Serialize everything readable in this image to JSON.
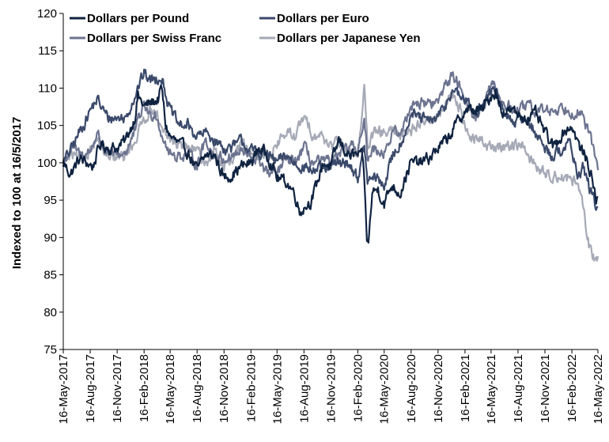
{
  "chart_data": {
    "type": "line",
    "ylabel": "Indexed to 100 at 16/5/2017",
    "ylim": [
      75,
      120
    ],
    "yticks": [
      75,
      80,
      85,
      90,
      95,
      100,
      105,
      110,
      115,
      120
    ],
    "x_start": "16-May-2017",
    "x_end": "16-May-2022",
    "x_ticks": [
      "16-May-2017",
      "16-Aug-2017",
      "16-Nov-2017",
      "16-Feb-2018",
      "16-May-2018",
      "16-Aug-2018",
      "16-Nov-2018",
      "16-Feb-2019",
      "16-May-2019",
      "16-Aug-2019",
      "16-Nov-2019",
      "16-Feb-2020",
      "16-May-2020",
      "16-Aug-2020",
      "16-Nov-2020",
      "16-Feb-2021",
      "16-May-2021",
      "16-Aug-2021",
      "16-Nov-2021",
      "16-Feb-2022",
      "16-May-2022"
    ],
    "legend": "top",
    "grid": false,
    "series": [
      {
        "name": "Dollars per Pound",
        "color": "#0f2340",
        "points": [
          [
            "2017-05-16",
            100
          ],
          [
            "2017-06-10",
            98.5
          ],
          [
            "2017-07-10",
            100.5
          ],
          [
            "2017-08-05",
            100
          ],
          [
            "2017-08-25",
            99.5
          ],
          [
            "2017-09-20",
            102.5
          ],
          [
            "2017-10-20",
            102
          ],
          [
            "2017-11-16",
            102
          ],
          [
            "2017-12-15",
            103
          ],
          [
            "2018-01-15",
            106
          ],
          [
            "2018-01-26",
            109
          ],
          [
            "2018-02-16",
            107.5
          ],
          [
            "2018-03-10",
            108
          ],
          [
            "2018-04-05",
            108.5
          ],
          [
            "2018-04-17",
            110
          ],
          [
            "2018-05-01",
            105
          ],
          [
            "2018-05-16",
            103.5
          ],
          [
            "2018-06-15",
            102.5
          ],
          [
            "2018-07-15",
            101.5
          ],
          [
            "2018-08-16",
            99
          ],
          [
            "2018-09-15",
            101
          ],
          [
            "2018-10-15",
            101
          ],
          [
            "2018-11-16",
            98
          ],
          [
            "2018-12-15",
            98.5
          ],
          [
            "2019-01-15",
            99.5
          ],
          [
            "2019-02-16",
            100
          ],
          [
            "2019-03-15",
            102
          ],
          [
            "2019-04-15",
            101
          ],
          [
            "2019-05-16",
            98
          ],
          [
            "2019-06-15",
            97.5
          ],
          [
            "2019-07-15",
            96
          ],
          [
            "2019-08-01",
            93.5
          ],
          [
            "2019-08-16",
            94
          ],
          [
            "2019-09-10",
            95
          ],
          [
            "2019-09-25",
            96.5
          ],
          [
            "2019-10-20",
            100
          ],
          [
            "2019-11-16",
            99.5
          ],
          [
            "2019-12-13",
            103
          ],
          [
            "2020-01-15",
            101
          ],
          [
            "2020-02-16",
            101
          ],
          [
            "2020-03-05",
            100.5
          ],
          [
            "2020-03-18",
            90
          ],
          [
            "2020-03-23",
            89
          ],
          [
            "2020-04-05",
            96
          ],
          [
            "2020-04-25",
            96.5
          ],
          [
            "2020-05-16",
            94.5
          ],
          [
            "2020-06-10",
            97
          ],
          [
            "2020-07-10",
            96
          ],
          [
            "2020-08-05",
            99
          ],
          [
            "2020-08-16",
            100
          ],
          [
            "2020-09-15",
            100
          ],
          [
            "2020-10-15",
            100.5
          ],
          [
            "2020-11-16",
            102
          ],
          [
            "2020-12-15",
            103
          ],
          [
            "2021-01-15",
            105
          ],
          [
            "2021-02-16",
            107
          ],
          [
            "2021-03-15",
            107
          ],
          [
            "2021-04-15",
            107
          ],
          [
            "2021-05-16",
            109
          ],
          [
            "2021-06-01",
            109.5
          ],
          [
            "2021-06-20",
            107
          ],
          [
            "2021-07-15",
            107
          ],
          [
            "2021-08-16",
            106.5
          ],
          [
            "2021-09-15",
            106
          ],
          [
            "2021-10-15",
            106.5
          ],
          [
            "2021-11-16",
            104
          ],
          [
            "2021-12-15",
            102
          ],
          [
            "2022-01-15",
            104
          ],
          [
            "2022-02-16",
            105
          ],
          [
            "2022-03-15",
            102
          ],
          [
            "2022-04-01",
            101
          ],
          [
            "2022-04-20",
            99
          ],
          [
            "2022-05-10",
            95
          ],
          [
            "2022-05-16",
            95.5
          ]
        ]
      },
      {
        "name": "Dollars per Euro",
        "color": "#3b4a6b",
        "points": [
          [
            "2017-05-16",
            100
          ],
          [
            "2017-06-15",
            102
          ],
          [
            "2017-07-15",
            104.5
          ],
          [
            "2017-08-16",
            107
          ],
          [
            "2017-09-08",
            108.5
          ],
          [
            "2017-10-15",
            106
          ],
          [
            "2017-11-16",
            106
          ],
          [
            "2017-12-15",
            106
          ],
          [
            "2018-01-15",
            109
          ],
          [
            "2018-02-16",
            112
          ],
          [
            "2018-03-10",
            111
          ],
          [
            "2018-04-05",
            111.5
          ],
          [
            "2018-04-17",
            111.5
          ],
          [
            "2018-05-16",
            107
          ],
          [
            "2018-06-15",
            105
          ],
          [
            "2018-07-15",
            105
          ],
          [
            "2018-08-16",
            103.5
          ],
          [
            "2018-09-15",
            104
          ],
          [
            "2018-10-15",
            103
          ],
          [
            "2018-11-16",
            102
          ],
          [
            "2018-12-15",
            102
          ],
          [
            "2019-01-15",
            103
          ],
          [
            "2019-02-16",
            101.5
          ],
          [
            "2019-03-15",
            101.5
          ],
          [
            "2019-04-15",
            101
          ],
          [
            "2019-05-16",
            100
          ],
          [
            "2019-06-15",
            101
          ],
          [
            "2019-07-15",
            100
          ],
          [
            "2019-08-16",
            99.5
          ],
          [
            "2019-09-15",
            99
          ],
          [
            "2019-10-15",
            99
          ],
          [
            "2019-11-16",
            99.5
          ],
          [
            "2019-12-15",
            100
          ],
          [
            "2020-01-15",
            100
          ],
          [
            "2020-02-16",
            98
          ],
          [
            "2020-03-09",
            102
          ],
          [
            "2020-03-20",
            97.5
          ],
          [
            "2020-04-15",
            98
          ],
          [
            "2020-05-16",
            97
          ],
          [
            "2020-06-15",
            101
          ],
          [
            "2020-07-15",
            103
          ],
          [
            "2020-08-16",
            106.5
          ],
          [
            "2020-09-15",
            106
          ],
          [
            "2020-10-15",
            105.5
          ],
          [
            "2020-11-16",
            106
          ],
          [
            "2020-12-15",
            108
          ],
          [
            "2021-01-06",
            110
          ],
          [
            "2021-01-20",
            109
          ],
          [
            "2021-02-16",
            108.5
          ],
          [
            "2021-03-15",
            107
          ],
          [
            "2021-04-15",
            107.5
          ],
          [
            "2021-05-16",
            109.5
          ],
          [
            "2021-06-01",
            110
          ],
          [
            "2021-06-20",
            107
          ],
          [
            "2021-07-15",
            106
          ],
          [
            "2021-08-16",
            105.5
          ],
          [
            "2021-09-15",
            106
          ],
          [
            "2021-10-15",
            104
          ],
          [
            "2021-11-16",
            102
          ],
          [
            "2021-12-15",
            101
          ],
          [
            "2022-01-15",
            102
          ],
          [
            "2022-02-10",
            102.5
          ],
          [
            "2022-02-16",
            102
          ],
          [
            "2022-03-07",
            98
          ],
          [
            "2022-03-25",
            99.5
          ],
          [
            "2022-04-15",
            97
          ],
          [
            "2022-05-10",
            94
          ],
          [
            "2022-05-16",
            94
          ]
        ]
      },
      {
        "name": "Dollars per Swiss Franc",
        "color": "#6d7490",
        "points": [
          [
            "2017-05-16",
            100
          ],
          [
            "2017-06-15",
            102
          ],
          [
            "2017-07-15",
            101
          ],
          [
            "2017-08-16",
            101.5
          ],
          [
            "2017-09-08",
            104
          ],
          [
            "2017-10-15",
            101
          ],
          [
            "2017-11-16",
            101
          ],
          [
            "2017-12-15",
            101.5
          ],
          [
            "2018-01-15",
            104
          ],
          [
            "2018-02-16",
            108
          ],
          [
            "2018-03-10",
            106
          ],
          [
            "2018-03-25",
            107
          ],
          [
            "2018-04-17",
            104
          ],
          [
            "2018-05-16",
            101
          ],
          [
            "2018-06-15",
            101
          ],
          [
            "2018-07-15",
            101
          ],
          [
            "2018-08-16",
            100
          ],
          [
            "2018-09-15",
            103
          ],
          [
            "2018-10-15",
            101
          ],
          [
            "2018-11-16",
            100.5
          ],
          [
            "2018-12-15",
            101
          ],
          [
            "2019-01-15",
            101.5
          ],
          [
            "2019-02-16",
            100.5
          ],
          [
            "2019-03-15",
            100.5
          ],
          [
            "2019-04-15",
            98.5
          ],
          [
            "2019-05-16",
            98.5
          ],
          [
            "2019-06-15",
            100.5
          ],
          [
            "2019-07-15",
            100
          ],
          [
            "2019-08-16",
            102
          ],
          [
            "2019-09-15",
            100
          ],
          [
            "2019-10-15",
            100
          ],
          [
            "2019-11-16",
            100
          ],
          [
            "2019-12-15",
            101
          ],
          [
            "2020-01-15",
            102
          ],
          [
            "2020-02-16",
            102
          ],
          [
            "2020-03-09",
            105
          ],
          [
            "2020-03-20",
            101
          ],
          [
            "2020-04-15",
            102
          ],
          [
            "2020-05-16",
            101.5
          ],
          [
            "2020-06-15",
            104
          ],
          [
            "2020-07-15",
            104
          ],
          [
            "2020-08-16",
            108
          ],
          [
            "2020-09-15",
            108
          ],
          [
            "2020-10-15",
            108
          ],
          [
            "2020-11-16",
            108
          ],
          [
            "2020-12-15",
            111
          ],
          [
            "2021-01-06",
            111.5
          ],
          [
            "2021-01-20",
            111
          ],
          [
            "2021-02-16",
            109
          ],
          [
            "2021-03-15",
            106
          ],
          [
            "2021-04-15",
            107
          ],
          [
            "2021-05-16",
            110
          ],
          [
            "2021-06-01",
            110
          ],
          [
            "2021-06-20",
            108
          ],
          [
            "2021-07-15",
            107.5
          ],
          [
            "2021-08-16",
            107
          ],
          [
            "2021-09-15",
            107.5
          ],
          [
            "2021-10-15",
            107
          ],
          [
            "2021-11-16",
            107
          ],
          [
            "2021-12-15",
            107
          ],
          [
            "2022-01-15",
            107.5
          ],
          [
            "2022-02-16",
            107
          ],
          [
            "2022-03-07",
            107
          ],
          [
            "2022-03-25",
            106
          ],
          [
            "2022-04-15",
            104
          ],
          [
            "2022-05-10",
            100.5
          ],
          [
            "2022-05-16",
            99
          ]
        ]
      },
      {
        "name": "Dollars per Japanese Yen",
        "color": "#a6a9b6",
        "points": [
          [
            "2017-05-16",
            100
          ],
          [
            "2017-06-15",
            101
          ],
          [
            "2017-07-15",
            100
          ],
          [
            "2017-08-16",
            102
          ],
          [
            "2017-09-08",
            103
          ],
          [
            "2017-10-15",
            100.5
          ],
          [
            "2017-11-16",
            100.5
          ],
          [
            "2017-12-15",
            101
          ],
          [
            "2018-01-15",
            103
          ],
          [
            "2018-02-16",
            106
          ],
          [
            "2018-03-10",
            107
          ],
          [
            "2018-03-25",
            107.5
          ],
          [
            "2018-04-17",
            104
          ],
          [
            "2018-05-16",
            103
          ],
          [
            "2018-06-15",
            102.5
          ],
          [
            "2018-07-15",
            102
          ],
          [
            "2018-08-16",
            101.5
          ],
          [
            "2018-09-15",
            100
          ],
          [
            "2018-10-15",
            101.5
          ],
          [
            "2018-11-16",
            99.5
          ],
          [
            "2018-12-15",
            100
          ],
          [
            "2019-01-15",
            102.5
          ],
          [
            "2019-02-16",
            101.5
          ],
          [
            "2019-03-15",
            101.5
          ],
          [
            "2019-04-15",
            101
          ],
          [
            "2019-05-16",
            102.5
          ],
          [
            "2019-06-15",
            104
          ],
          [
            "2019-07-15",
            103.5
          ],
          [
            "2019-08-16",
            106
          ],
          [
            "2019-09-15",
            104
          ],
          [
            "2019-10-15",
            103.5
          ],
          [
            "2019-11-16",
            102.5
          ],
          [
            "2019-12-15",
            102.5
          ],
          [
            "2020-01-15",
            101.5
          ],
          [
            "2020-02-16",
            101
          ],
          [
            "2020-03-09",
            110
          ],
          [
            "2020-03-20",
            102
          ],
          [
            "2020-04-15",
            104
          ],
          [
            "2020-05-16",
            104
          ],
          [
            "2020-06-15",
            104
          ],
          [
            "2020-07-15",
            104
          ],
          [
            "2020-08-16",
            104.5
          ],
          [
            "2020-09-15",
            105.5
          ],
          [
            "2020-10-15",
            106
          ],
          [
            "2020-11-16",
            106
          ],
          [
            "2020-12-15",
            108
          ],
          [
            "2021-01-06",
            109
          ],
          [
            "2021-01-20",
            108.5
          ],
          [
            "2021-02-16",
            105
          ],
          [
            "2021-03-15",
            103
          ],
          [
            "2021-04-15",
            103
          ],
          [
            "2021-05-16",
            102
          ],
          [
            "2021-06-01",
            102
          ],
          [
            "2021-06-20",
            102
          ],
          [
            "2021-07-15",
            102.5
          ],
          [
            "2021-08-16",
            102.5
          ],
          [
            "2021-09-15",
            101.5
          ],
          [
            "2021-10-15",
            99.5
          ],
          [
            "2021-11-16",
            98.5
          ],
          [
            "2021-12-15",
            98.5
          ],
          [
            "2022-01-15",
            98
          ],
          [
            "2022-02-16",
            98
          ],
          [
            "2022-03-07",
            97
          ],
          [
            "2022-03-25",
            94
          ],
          [
            "2022-04-15",
            89
          ],
          [
            "2022-05-10",
            86.5
          ],
          [
            "2022-05-16",
            87.5
          ]
        ]
      }
    ]
  }
}
